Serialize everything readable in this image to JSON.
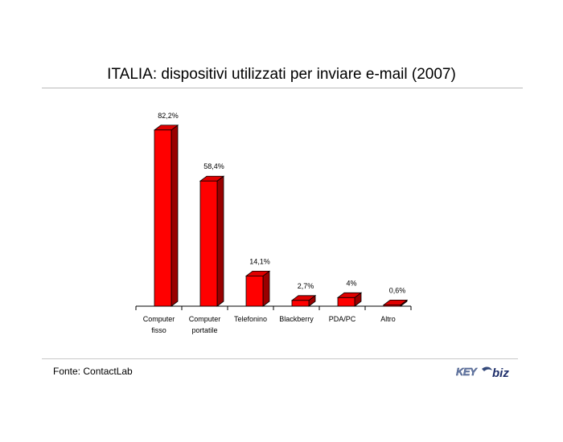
{
  "title": "ITALIA: dispositivi utilizzati per inviare e-mail (2007)",
  "source": "Fonte: ContactLab",
  "logo": {
    "left_text": "KEY",
    "right_text": "biz",
    "colors": {
      "left": "#6b7ea8",
      "right": "#1f2f6b"
    }
  },
  "colors": {
    "bar_front": "#ff0000",
    "bar_top": "#e00000",
    "bar_side": "#990000",
    "outline": "#000000"
  },
  "chart_data": {
    "type": "bar",
    "categories": [
      [
        "Computer",
        "fisso"
      ],
      [
        "Computer",
        "portatile"
      ],
      [
        "Telefonino"
      ],
      [
        "Blackberry"
      ],
      [
        "PDA/PC"
      ],
      [
        "Altro"
      ]
    ],
    "values": [
      82.2,
      58.4,
      14.1,
      2.7,
      4,
      0.6
    ],
    "value_labels": [
      "82,2%",
      "58,4%",
      "14,1%",
      "2,7%",
      "4%",
      "0,6%"
    ],
    "title": "ITALIA: dispositivi utilizzati per inviare e-mail (2007)",
    "xlabel": "",
    "ylabel": "",
    "ylim": [
      0,
      85
    ],
    "grid": false,
    "legend": "none"
  }
}
